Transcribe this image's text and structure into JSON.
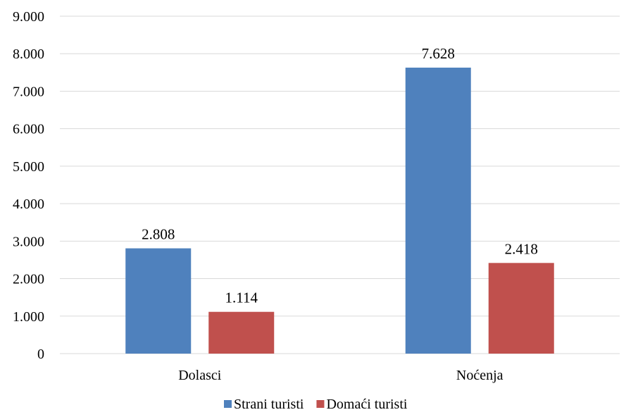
{
  "chart_data": {
    "type": "bar",
    "categories": [
      "Dolasci",
      "Noćenja"
    ],
    "series": [
      {
        "name": "Strani turisti",
        "color": "#4f81bd",
        "values": [
          2808,
          7628
        ],
        "labels": [
          "2.808",
          "7.628"
        ]
      },
      {
        "name": "Domaći turisti",
        "color": "#c0504d",
        "values": [
          1114,
          2418
        ],
        "labels": [
          "1.114",
          "2.418"
        ]
      }
    ],
    "y_ticks": [
      0,
      1000,
      2000,
      3000,
      4000,
      5000,
      6000,
      7000,
      8000,
      9000
    ],
    "y_tick_labels": [
      "0",
      "1.000",
      "2.000",
      "3.000",
      "4.000",
      "5.000",
      "6.000",
      "7.000",
      "8.000",
      "9.000"
    ],
    "ylim": [
      0,
      9000
    ],
    "grid": true,
    "legend_position": "bottom"
  }
}
